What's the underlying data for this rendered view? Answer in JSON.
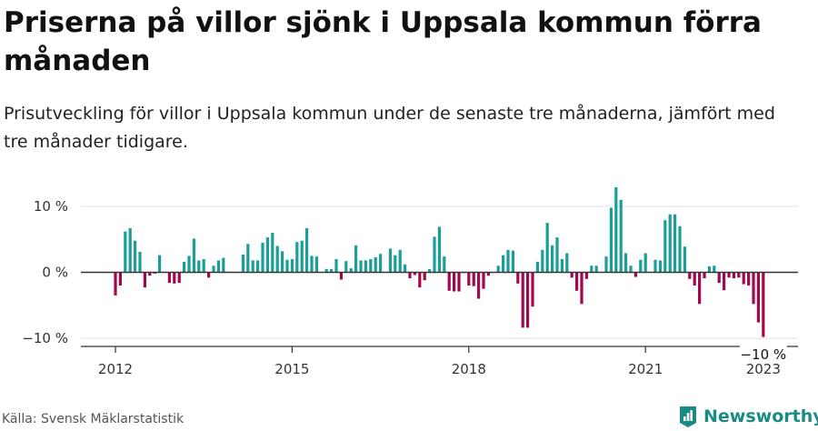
{
  "title": "Priserna på villor sjönk i Uppsala kommun förra månaden",
  "subtitle": "Prisutveckling för villor i Uppsala kommun under de senaste tre månaderna, jämfört med tre månader tidigare.",
  "source": "Källa: Svensk Mäklarstatistik",
  "brand": {
    "name": "Newsworthy",
    "logo_icon": "newsworthy-logo-icon"
  },
  "colors": {
    "positive": "#1a9e96",
    "negative": "#a3084d",
    "grid": "#e2e2e2",
    "axis": "#333333"
  },
  "chart_data": {
    "type": "bar",
    "x_start": "2012-01",
    "x_ticks": [
      "2012",
      "2015",
      "2018",
      "2021",
      "2023"
    ],
    "y_ticks": [
      {
        "value": 10,
        "label": "10 %"
      },
      {
        "value": 0,
        "label": "0 %"
      },
      {
        "value": -10,
        "label": "−10 %"
      }
    ],
    "ylim": [
      -11,
      12.5
    ],
    "grid": true,
    "annotation": "−10 %",
    "values": [
      -3.5,
      -2,
      6.2,
      6.7,
      4.8,
      3.1,
      -2.3,
      -0.5,
      -0.2,
      2.6,
      0.1,
      -1.6,
      -1.7,
      -1.6,
      1.6,
      2.5,
      5.1,
      1.8,
      2,
      -0.8,
      1,
      1.8,
      2.2,
      0.1,
      0,
      0,
      2.7,
      4.3,
      1.8,
      1.8,
      4.5,
      5.3,
      6,
      4,
      3.2,
      1.9,
      2,
      4.6,
      4.8,
      6.7,
      2.5,
      2.4,
      0,
      0.5,
      0.5,
      2,
      -1.1,
      1.7,
      0.6,
      4.1,
      1.8,
      1.8,
      2,
      2.3,
      2.8,
      0,
      3.6,
      2.6,
      3.4,
      1.2,
      -0.9,
      -0.4,
      -2.3,
      -1.2,
      0.5,
      5.4,
      6.9,
      2.4,
      -2.8,
      -2.9,
      -2.9,
      -0.1,
      -2,
      -2.1,
      -4,
      -2.5,
      -0.5,
      0,
      1,
      2.6,
      3.4,
      3.3,
      -1.7,
      -8.4,
      -8.4,
      -5.2,
      1.6,
      3.4,
      7.5,
      4.1,
      5.3,
      2,
      2.9,
      -0.8,
      -2.8,
      -4.8,
      -1,
      1,
      1,
      0,
      2.4,
      9.8,
      12.9,
      11,
      2.9,
      1,
      -0.7,
      1.9,
      2.9,
      0,
      1.9,
      1.8,
      7.9,
      8.8,
      8.8,
      7,
      3.9,
      -1,
      -2,
      -4.8,
      -0.9,
      0.9,
      1,
      -1.6,
      -2.7,
      -0.8,
      -0.9,
      -0.8,
      -1.8,
      -2,
      -4.8,
      -7.6,
      -9.8
    ]
  }
}
